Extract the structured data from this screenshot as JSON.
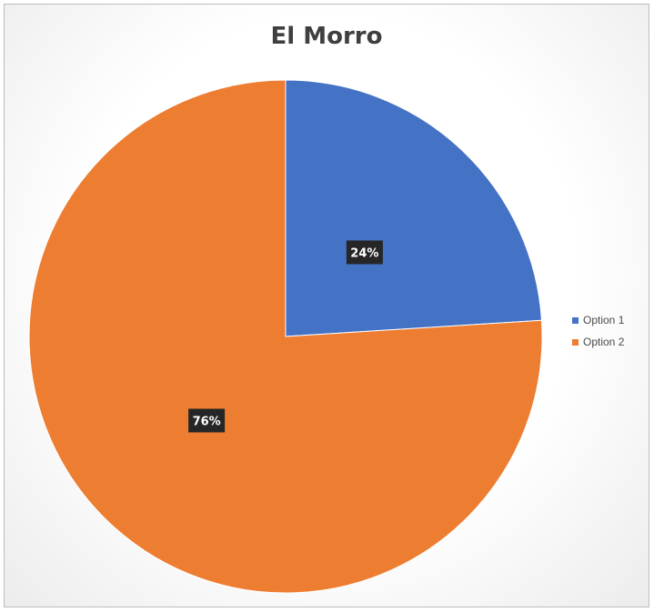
{
  "chart_data": {
    "type": "pie",
    "title": "El Morro",
    "categories": [
      "Option 1",
      "Option 2"
    ],
    "values": [
      24,
      76
    ],
    "data_labels": [
      "24%",
      "76%"
    ],
    "colors": [
      "#4472C4",
      "#ED7D31"
    ],
    "legend_position": "right",
    "start_angle": "12 o'clock, clockwise"
  }
}
